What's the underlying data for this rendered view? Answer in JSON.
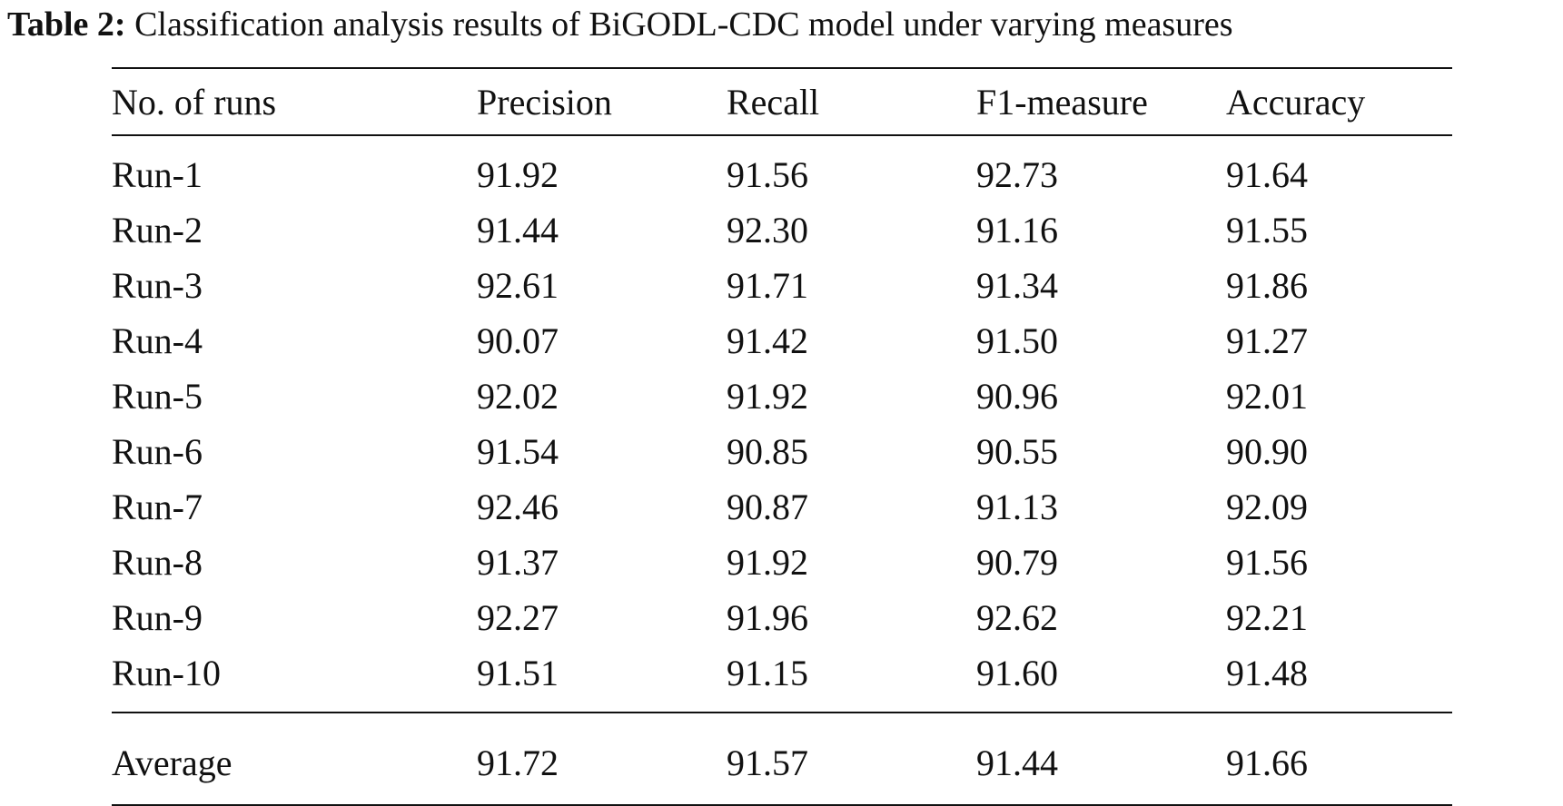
{
  "caption": {
    "label": "Table 2:",
    "text": "Classification analysis results of BiGODL-CDC model under varying measures"
  },
  "table": {
    "headers": [
      "No. of runs",
      "Precision",
      "Recall",
      "F1-measure",
      "Accuracy"
    ],
    "rows": [
      [
        "Run-1",
        "91.92",
        "91.56",
        "92.73",
        "91.64"
      ],
      [
        "Run-2",
        "91.44",
        "92.30",
        "91.16",
        "91.55"
      ],
      [
        "Run-3",
        "92.61",
        "91.71",
        "91.34",
        "91.86"
      ],
      [
        "Run-4",
        "90.07",
        "91.42",
        "91.50",
        "91.27"
      ],
      [
        "Run-5",
        "92.02",
        "91.92",
        "90.96",
        "92.01"
      ],
      [
        "Run-6",
        "91.54",
        "90.85",
        "90.55",
        "90.90"
      ],
      [
        "Run-7",
        "92.46",
        "90.87",
        "91.13",
        "92.09"
      ],
      [
        "Run-8",
        "91.37",
        "91.92",
        "90.79",
        "91.56"
      ],
      [
        "Run-9",
        "92.27",
        "91.96",
        "92.62",
        "92.21"
      ],
      [
        "Run-10",
        "91.51",
        "91.15",
        "91.60",
        "91.48"
      ]
    ],
    "average": [
      "Average",
      "91.72",
      "91.57",
      "91.44",
      "91.66"
    ]
  }
}
